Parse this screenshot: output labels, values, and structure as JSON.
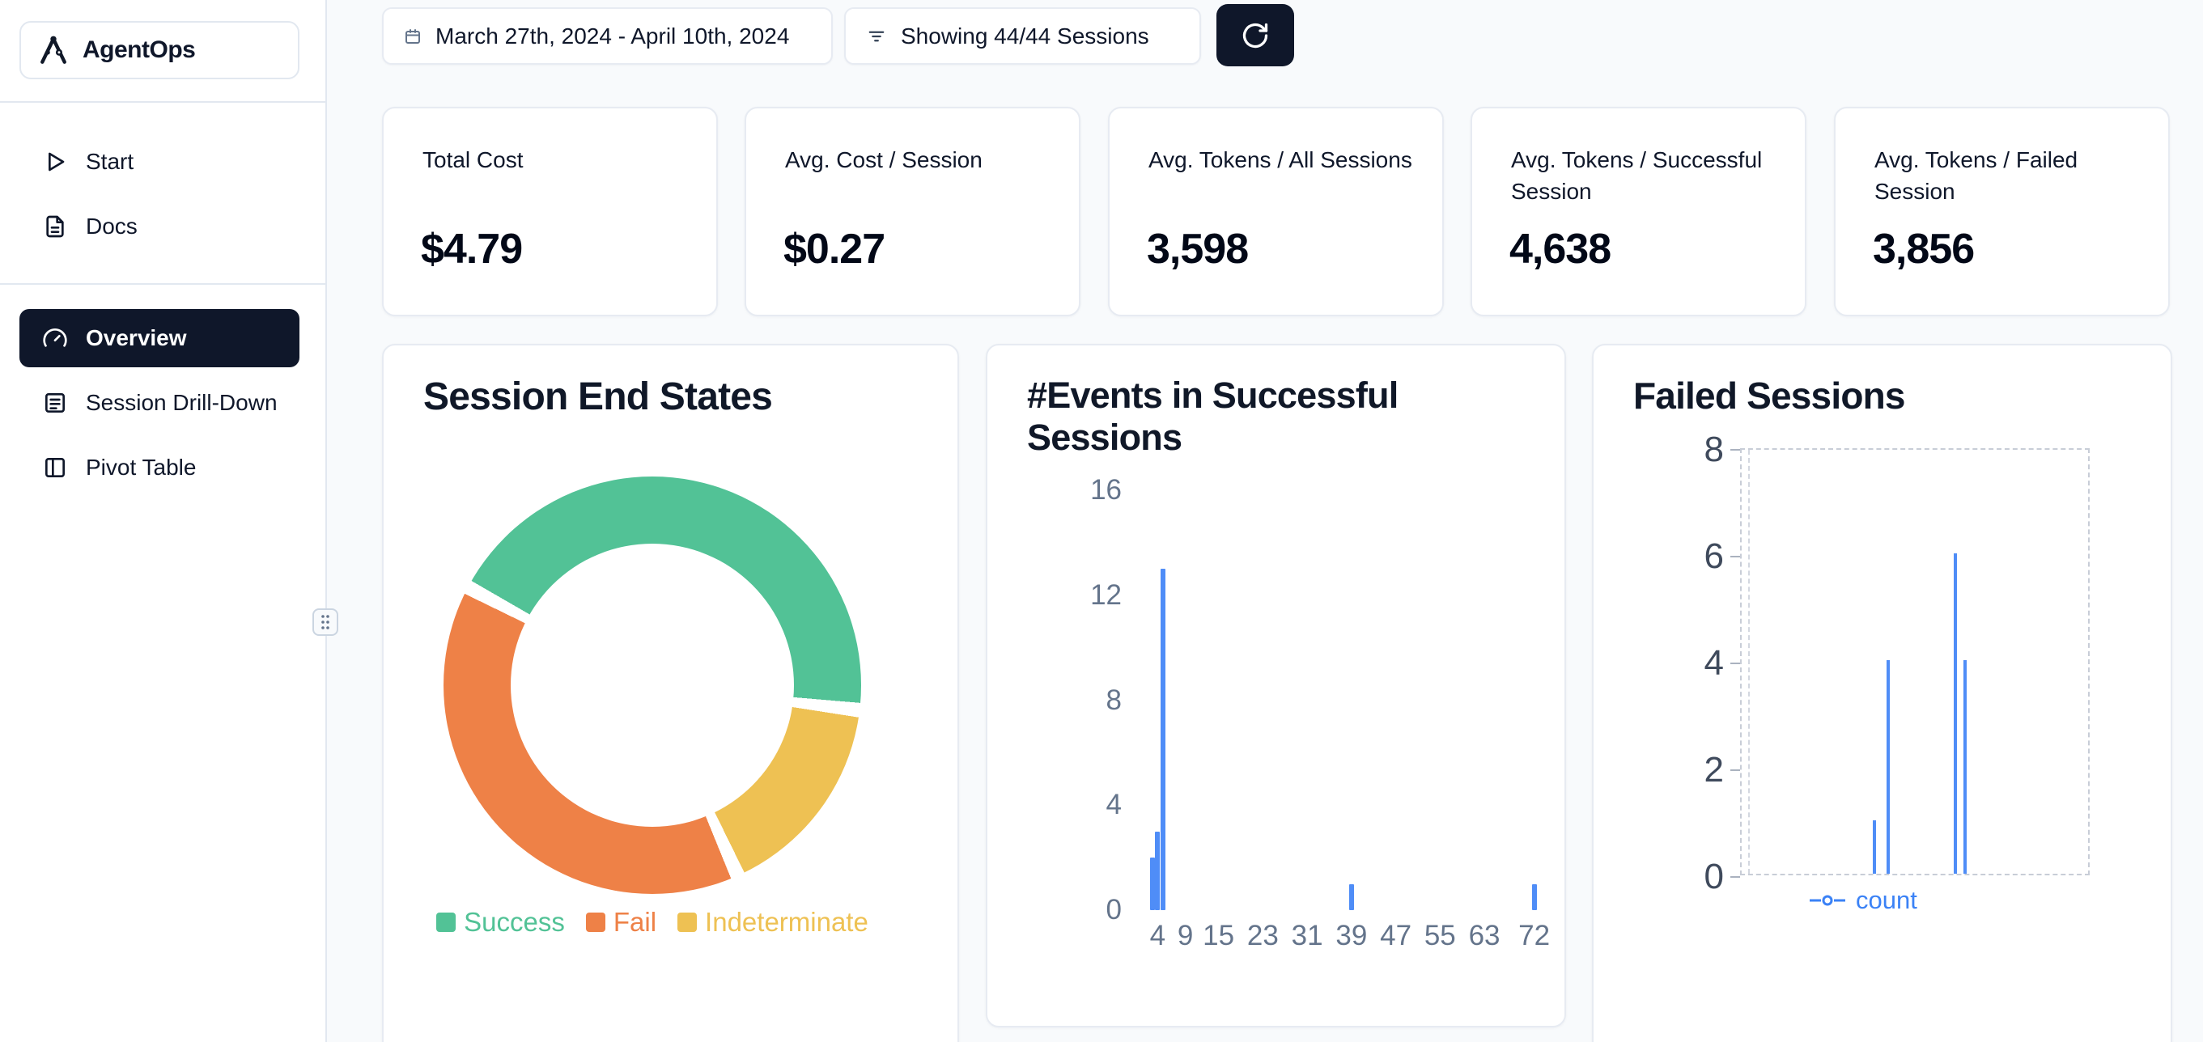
{
  "sidebar": {
    "logo": {
      "label": "AgentOps"
    },
    "primary_items": [
      {
        "label": "Start",
        "icon": "play-icon"
      },
      {
        "label": "Docs",
        "icon": "docs-icon"
      }
    ],
    "nav_items": [
      {
        "label": "Overview",
        "icon": "gauge-icon",
        "active": true
      },
      {
        "label": "Session Drill-Down",
        "icon": "sessions-icon",
        "active": false
      },
      {
        "label": "Pivot Table",
        "icon": "pivot-icon",
        "active": false
      }
    ]
  },
  "toolbar": {
    "date_range": "March 27th, 2024 - April 10th, 2024",
    "sessions_filter": "Showing 44/44 Sessions",
    "refresh_icon": "refresh-icon"
  },
  "stats": [
    {
      "title": "Total Cost",
      "value": "$4.79"
    },
    {
      "title": "Avg. Cost / Session",
      "value": "$0.27"
    },
    {
      "title": "Avg. Tokens / All Sessions",
      "value": "3,598"
    },
    {
      "title": "Avg. Tokens / Successful Session",
      "value": "4,638"
    },
    {
      "title": "Avg. Tokens / Failed Session",
      "value": "3,856"
    }
  ],
  "colors": {
    "accent_dark": "#0f172a",
    "success_green": "#52c296",
    "fail_orange": "#ee8147",
    "indeterminate_yellow": "#eec153",
    "series_blue": "#4f8df7",
    "legend_blue": "#3b82f6"
  },
  "chart_data": [
    {
      "type": "pie",
      "title": "Session End States",
      "labels": [
        "Success",
        "Fail",
        "Indeterminate"
      ],
      "values": [
        44.5,
        39.7,
        15.8
      ],
      "colors": [
        "#52c296",
        "#ee8147",
        "#eec153"
      ],
      "hole": 0.68,
      "legend_position": "bottom"
    },
    {
      "type": "bar",
      "title": "#Events in Successful Sessions",
      "x": [
        3,
        4,
        5,
        39,
        72
      ],
      "values": [
        2,
        3,
        13,
        1,
        1
      ],
      "xticks": [
        4,
        9,
        15,
        23,
        31,
        39,
        47,
        55,
        63,
        72
      ],
      "yticks": [
        0,
        4,
        8,
        12,
        16
      ],
      "xlim": [
        0,
        76
      ],
      "ylim": [
        0,
        16
      ],
      "bar_color": "#4f8df7",
      "grid": "off"
    },
    {
      "type": "line",
      "title": "Failed Sessions",
      "series": [
        {
          "name": "count",
          "color": "#4f8df7"
        }
      ],
      "spikes": [
        {
          "pos": 0.38,
          "count": 1
        },
        {
          "pos": 0.42,
          "count": 4
        },
        {
          "pos": 0.61,
          "count": 6
        },
        {
          "pos": 0.64,
          "count": 4
        }
      ],
      "yticks": [
        0,
        2,
        4,
        6,
        8
      ],
      "ylim": [
        0,
        8
      ],
      "grid": "dashed",
      "legend_position": "bottom"
    }
  ]
}
